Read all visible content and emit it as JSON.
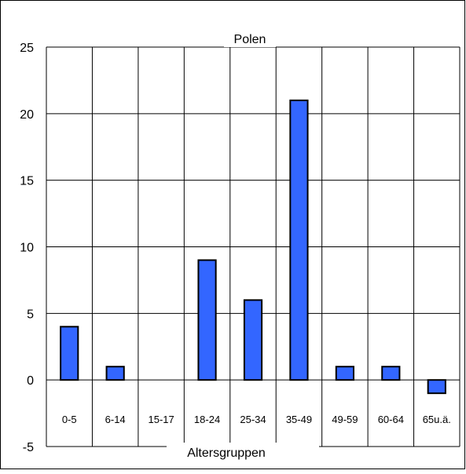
{
  "chart_data": {
    "type": "bar",
    "title": "Polen",
    "xlabel": "Altersgruppen",
    "ylabel": "",
    "categories": [
      "0-5",
      "6-14",
      "15-17",
      "18-24",
      "25-34",
      "35-49",
      "49-59",
      "60-64",
      "65u.ä."
    ],
    "values": [
      4,
      1,
      0,
      9,
      6,
      21,
      1,
      1,
      -1
    ],
    "ylim": [
      -5,
      25
    ],
    "yticks": [
      -5,
      0,
      5,
      10,
      15,
      20,
      25
    ],
    "grid": true,
    "legend": "none",
    "colors": {
      "bar": "#3366ff",
      "bar_stroke": "#000000",
      "grid": "#000000",
      "background": "#ffffff"
    }
  }
}
